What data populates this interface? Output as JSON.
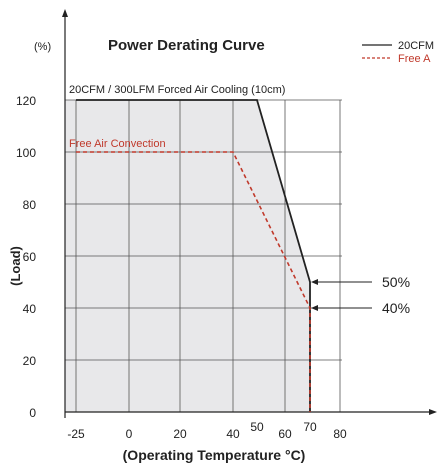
{
  "chart_data": {
    "type": "line",
    "title": "Power Derating Curve",
    "y_unit": "(%)",
    "xlabel": "(Operating Temperature °C)",
    "ylabel": "(Load)",
    "xlim": [
      -25,
      80
    ],
    "ylim": [
      0,
      120
    ],
    "x_ticks": [
      -25,
      0,
      20,
      40,
      50,
      60,
      70,
      80
    ],
    "y_ticks": [
      0,
      20,
      40,
      60,
      80,
      100,
      120
    ],
    "grid": true,
    "legend_position": "top-right",
    "series": [
      {
        "name": "20CFM",
        "color": "#222222",
        "dash": "solid",
        "label": "20CFM / 300LFM Forced Air Cooling (10cm)",
        "x": [
          -25,
          50,
          70,
          70
        ],
        "y": [
          120,
          120,
          50,
          0
        ]
      },
      {
        "name": "Free A",
        "color": "#c0392b",
        "dash": "dashed",
        "label": "Free Air Convection",
        "x": [
          -25,
          40,
          70,
          70
        ],
        "y": [
          100,
          100,
          40,
          0
        ]
      }
    ],
    "annotations": [
      {
        "text": "50%",
        "x": 70,
        "y": 50
      },
      {
        "text": "40%",
        "x": 70,
        "y": 40
      }
    ],
    "shaded_region": {
      "color": "#e8e8ea",
      "under_series": 0
    }
  }
}
